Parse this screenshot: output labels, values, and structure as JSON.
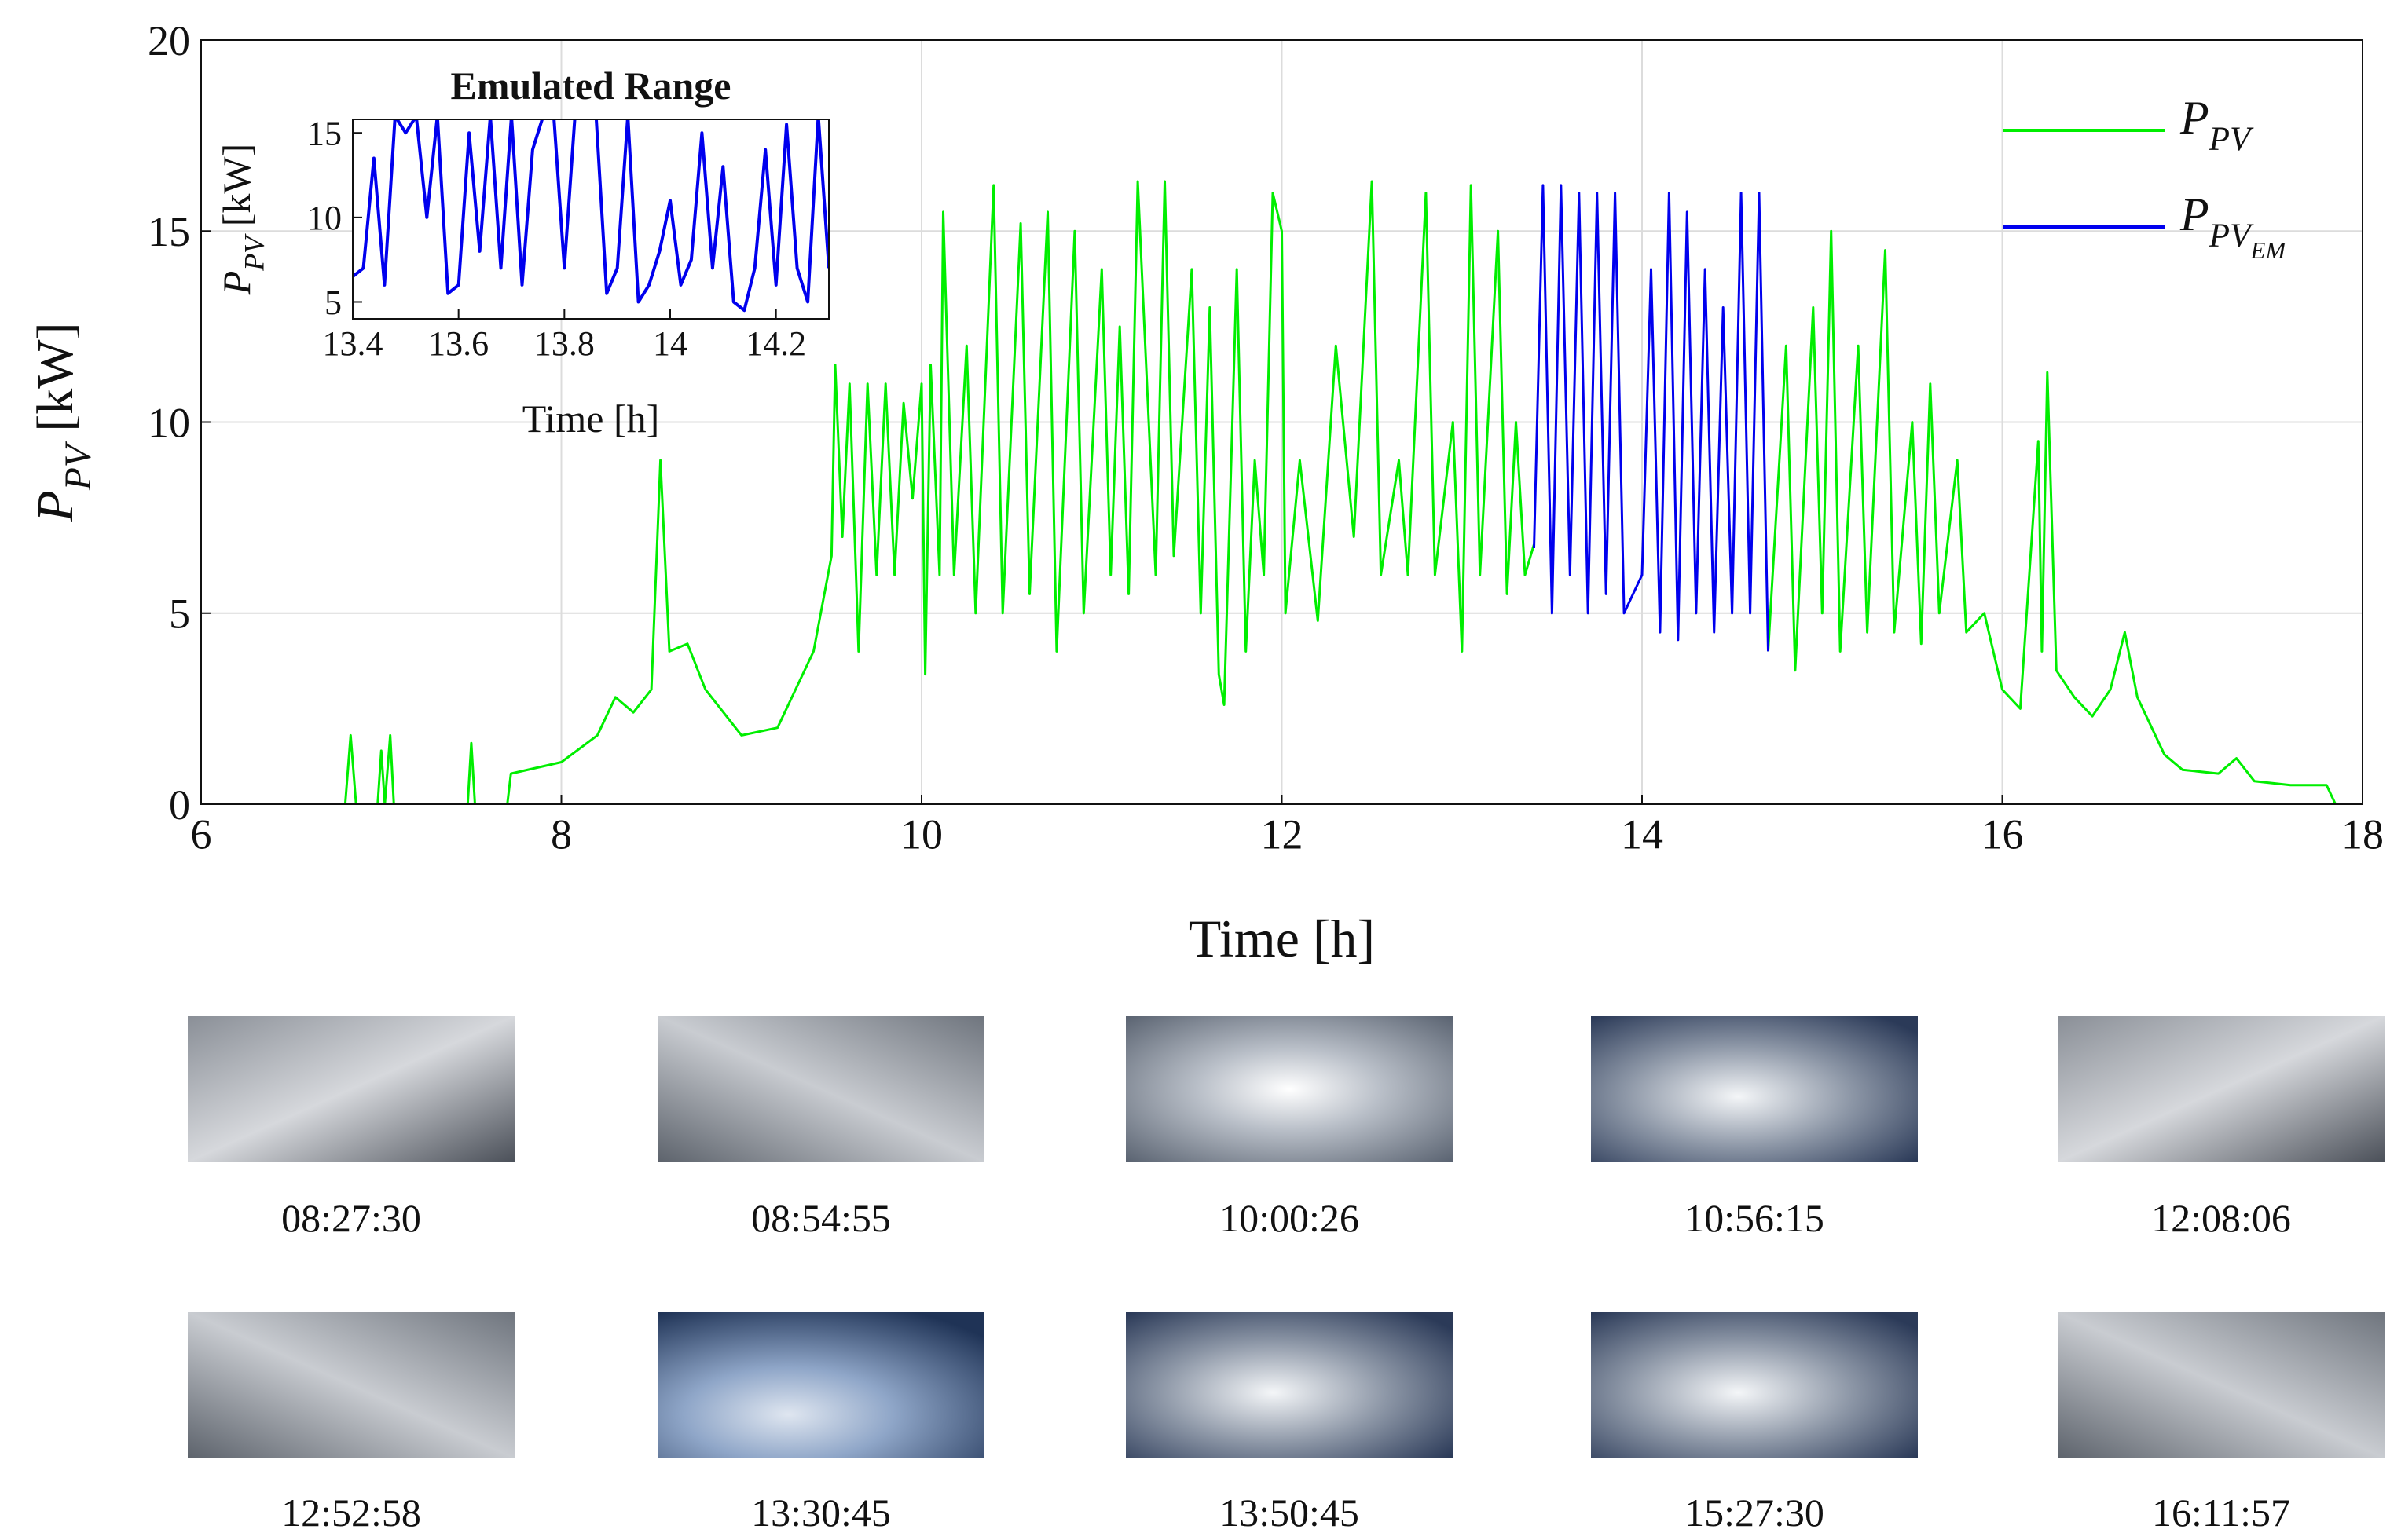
{
  "chart_data": [
    {
      "type": "line",
      "xlabel": "Time [h]",
      "ylabel": "P_PV [kW]",
      "xlim": [
        6,
        18
      ],
      "ylim": [
        0,
        20
      ],
      "xticks": [
        6,
        8,
        10,
        12,
        14,
        16,
        18
      ],
      "yticks": [
        0,
        5,
        10,
        15,
        20
      ],
      "grid": true,
      "legend": "upper right",
      "series": [
        {
          "name": "P_PV",
          "color": "#00ee00",
          "x": [
            6,
            6.8,
            6.83,
            6.86,
            6.98,
            7.0,
            7.02,
            7.05,
            7.07,
            7.48,
            7.5,
            7.52,
            7.7,
            7.72,
            8.0,
            8.2,
            8.3,
            8.4,
            8.5,
            8.55,
            8.6,
            8.7,
            8.8,
            9.0,
            9.2,
            9.4,
            9.5,
            9.52,
            9.56,
            9.6,
            9.65,
            9.7,
            9.75,
            9.8,
            9.85,
            9.9,
            9.95,
            10.0,
            10.02,
            10.05,
            10.1,
            10.12,
            10.18,
            10.25,
            10.3,
            10.4,
            10.45,
            10.55,
            10.6,
            10.7,
            10.75,
            10.85,
            10.9,
            11.0,
            11.05,
            11.1,
            11.15,
            11.2,
            11.3,
            11.35,
            11.4,
            11.5,
            11.55,
            11.6,
            11.65,
            11.68,
            11.75,
            11.8,
            11.85,
            11.9,
            11.95,
            12.0,
            12.02,
            12.1,
            12.2,
            12.3,
            12.4,
            12.5,
            12.55,
            12.65,
            12.7,
            12.8,
            12.85,
            12.95,
            13.0,
            13.05,
            13.1,
            13.2,
            13.25,
            13.3,
            13.35,
            13.4,
            13.45,
            14.7,
            14.8,
            14.85,
            14.95,
            15.0,
            15.05,
            15.1,
            15.2,
            15.25,
            15.35,
            15.4,
            15.5,
            15.55,
            15.6,
            15.65,
            15.75,
            15.8,
            15.9,
            16.0,
            16.1,
            16.2,
            16.22,
            16.25,
            16.3,
            16.4,
            16.5,
            16.6,
            16.68,
            16.75,
            16.9,
            17.0,
            17.2,
            17.3,
            17.4,
            17.6,
            17.8,
            17.85,
            18
          ],
          "values": [
            0,
            0,
            1.8,
            0,
            0,
            1.4,
            0,
            1.8,
            0,
            0,
            1.6,
            0,
            0,
            0.8,
            1.1,
            1.8,
            2.8,
            2.4,
            3.0,
            9.0,
            4.0,
            4.2,
            3.0,
            1.8,
            2.0,
            4.0,
            6.5,
            11.5,
            7,
            11,
            4,
            11,
            6,
            11,
            6,
            10.5,
            8,
            11,
            3.4,
            11.5,
            6,
            15.5,
            6,
            12,
            5,
            16.2,
            5,
            15.2,
            5.5,
            15.5,
            4,
            15,
            5,
            14,
            6,
            12.5,
            5.5,
            16.3,
            6,
            16.3,
            6.5,
            14,
            5,
            13,
            3.4,
            2.6,
            14,
            4,
            9,
            6,
            16,
            15,
            5,
            9,
            4.8,
            12,
            7,
            16.3,
            6,
            9,
            6,
            16,
            6,
            10,
            4,
            16.2,
            6,
            15,
            5.5,
            10,
            6,
            6.8,
            null,
            4,
            12,
            3.5,
            13,
            5,
            15,
            4,
            12,
            4.5,
            14.5,
            4.5,
            10,
            4.2,
            11,
            5,
            9,
            4.5,
            5,
            3,
            2.5,
            9.5,
            4,
            11.3,
            3.5,
            2.8,
            2.3,
            3.0,
            4.5,
            2.8,
            1.3,
            0.9,
            0.8,
            1.2,
            0.6,
            0.5,
            0.5,
            0,
            0
          ]
        },
        {
          "name": "P_PV_EM",
          "color": "#0000ee",
          "x": [
            13.4,
            13.45,
            13.5,
            13.55,
            13.6,
            13.65,
            13.7,
            13.75,
            13.8,
            13.85,
            13.9,
            14.0,
            14.05,
            14.1,
            14.15,
            14.2,
            14.25,
            14.3,
            14.35,
            14.4,
            14.45,
            14.5,
            14.55,
            14.6,
            14.65,
            14.7
          ],
          "values": [
            6.7,
            16.2,
            5,
            16.2,
            6,
            16,
            5,
            16,
            5.5,
            16,
            5,
            6,
            14,
            4.5,
            16,
            4.3,
            15.5,
            5,
            14,
            4.5,
            13,
            5,
            16,
            5,
            16,
            4
          ]
        }
      ]
    },
    {
      "type": "line",
      "title": "Emulated Range",
      "xlabel": "Time [h]",
      "ylabel": "P_PV [kW]",
      "xlim": [
        13.4,
        14.3
      ],
      "ylim": [
        4,
        15.8
      ],
      "xticks": [
        13.4,
        13.6,
        13.8,
        14,
        14.2
      ],
      "yticks": [
        5,
        10,
        15
      ],
      "grid": false,
      "series": [
        {
          "color": "#0000ee",
          "x": [
            13.4,
            13.42,
            13.44,
            13.46,
            13.48,
            13.5,
            13.52,
            13.54,
            13.56,
            13.58,
            13.6,
            13.62,
            13.64,
            13.66,
            13.68,
            13.7,
            13.72,
            13.74,
            13.76,
            13.78,
            13.8,
            13.82,
            13.84,
            13.86,
            13.88,
            13.9,
            13.92,
            13.94,
            13.96,
            13.98,
            14.0,
            14.02,
            14.04,
            14.06,
            14.08,
            14.1,
            14.12,
            14.14,
            14.16,
            14.18,
            14.2,
            14.22,
            14.24,
            14.26,
            14.28,
            14.3
          ],
          "values": [
            6.5,
            7,
            13.5,
            6,
            16,
            15,
            16,
            10,
            16,
            5.5,
            6,
            15,
            8,
            16,
            7,
            16,
            6,
            14,
            16,
            16,
            7,
            16,
            16,
            16,
            5.5,
            7,
            16,
            5,
            6,
            8,
            11,
            6,
            7.5,
            15,
            7,
            13,
            5,
            4.5,
            7,
            14,
            6,
            15.5,
            7,
            5,
            16,
            7
          ]
        }
      ]
    }
  ],
  "photos": [
    {
      "label": "08:27:30"
    },
    {
      "label": "08:54:55"
    },
    {
      "label": "10:00:26"
    },
    {
      "label": "10:56:15"
    },
    {
      "label": "12:08:06"
    },
    {
      "label": "12:52:58"
    },
    {
      "label": "13:30:45"
    },
    {
      "label": "13:50:45"
    },
    {
      "label": "15:27:30"
    },
    {
      "label": "16:11:57"
    }
  ]
}
